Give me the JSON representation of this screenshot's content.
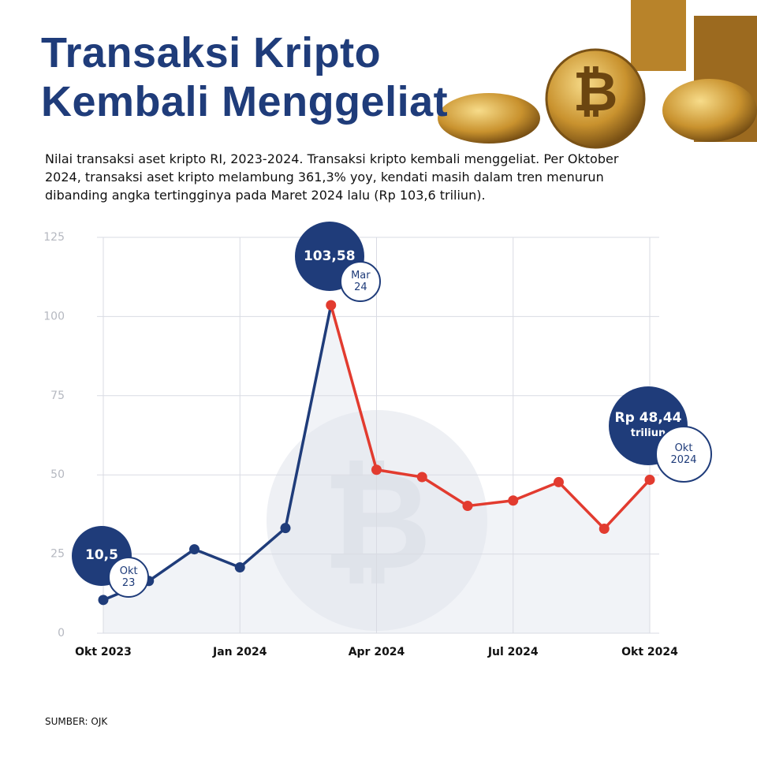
{
  "chart_data": {
    "type": "line",
    "title": [
      "Transaksi Kripto",
      "Kembali Menggeliat"
    ],
    "subtitle": "Nilai transaksi aset kripto RI, 2023-2024. Transaksi kripto kembali menggeliat. Per Oktober 2024, transaksi aset kripto melambung 361,3% yoy, kendati masih dalam tren menurun dibanding angka tertingginya pada Maret 2024 lalu (Rp 103,6 triliun).",
    "source": "SUMBER: OJK",
    "categories": [
      "Okt 2023",
      null,
      null,
      "Jan 2024",
      null,
      null,
      "Apr 2024",
      null,
      null,
      "Jul 2024",
      null,
      null,
      "Okt 2024"
    ],
    "values": [
      10.5,
      16.5,
      26.5,
      20.8,
      33.2,
      103.58,
      51.6,
      49.3,
      40.2,
      41.9,
      47.7,
      33.0,
      48.44
    ],
    "value_labels": [
      "10,5",
      null,
      null,
      null,
      null,
      "103,58",
      null,
      null,
      null,
      null,
      null,
      null,
      "Rp 48,44"
    ],
    "value_label_units": [
      null,
      null,
      null,
      null,
      null,
      null,
      null,
      null,
      null,
      null,
      null,
      null,
      "triliun"
    ],
    "annotation_dates": [
      "Okt 23",
      null,
      null,
      null,
      null,
      "Mar 24",
      null,
      null,
      null,
      null,
      null,
      null,
      "Okt 2024"
    ],
    "color": "#1f3c7a",
    "color_after_peak": "#e23b2f",
    "ylim": [
      0,
      125
    ],
    "yticks": [
      0,
      25,
      50,
      75,
      100,
      125
    ],
    "grid": true
  }
}
